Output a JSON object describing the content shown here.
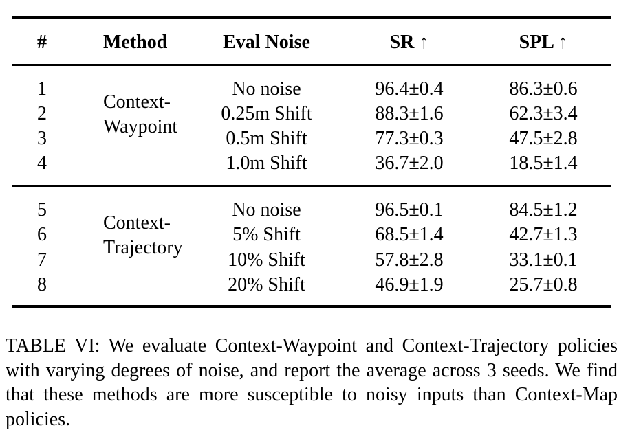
{
  "table": {
    "headers": {
      "num": "#",
      "method": "Method",
      "eval_noise": "Eval Noise",
      "sr": "SR ↑",
      "spl": "SPL ↑"
    },
    "groups": [
      {
        "method_line1": "Context-",
        "method_line2": "Waypoint",
        "rows": [
          {
            "num": "1",
            "noise": "No noise",
            "sr": "96.4±0.4",
            "spl": "86.3±0.6"
          },
          {
            "num": "2",
            "noise": "0.25m Shift",
            "sr": "88.3±1.6",
            "spl": "62.3±3.4"
          },
          {
            "num": "3",
            "noise": "0.5m Shift",
            "sr": "77.3±0.3",
            "spl": "47.5±2.8"
          },
          {
            "num": "4",
            "noise": "1.0m Shift",
            "sr": "36.7±2.0",
            "spl": "18.5±1.4"
          }
        ]
      },
      {
        "method_line1": "Context-",
        "method_line2": "Trajectory",
        "rows": [
          {
            "num": "5",
            "noise": "No noise",
            "sr": "96.5±0.1",
            "spl": "84.5±1.2"
          },
          {
            "num": "6",
            "noise": "5% Shift",
            "sr": "68.5±1.4",
            "spl": "42.7±1.3"
          },
          {
            "num": "7",
            "noise": "10% Shift",
            "sr": "57.8±2.8",
            "spl": "33.1±0.1"
          },
          {
            "num": "8",
            "noise": "20% Shift",
            "sr": "46.9±1.9",
            "spl": "25.7±0.8"
          }
        ]
      }
    ]
  },
  "caption": {
    "label": "TABLE VI:",
    "text": "We evaluate Context-Waypoint and Context-Trajectory policies with varying degrees of noise, and report the average across 3 seeds. We find that these methods are more susceptible to noisy inputs than Context-Map policies."
  }
}
